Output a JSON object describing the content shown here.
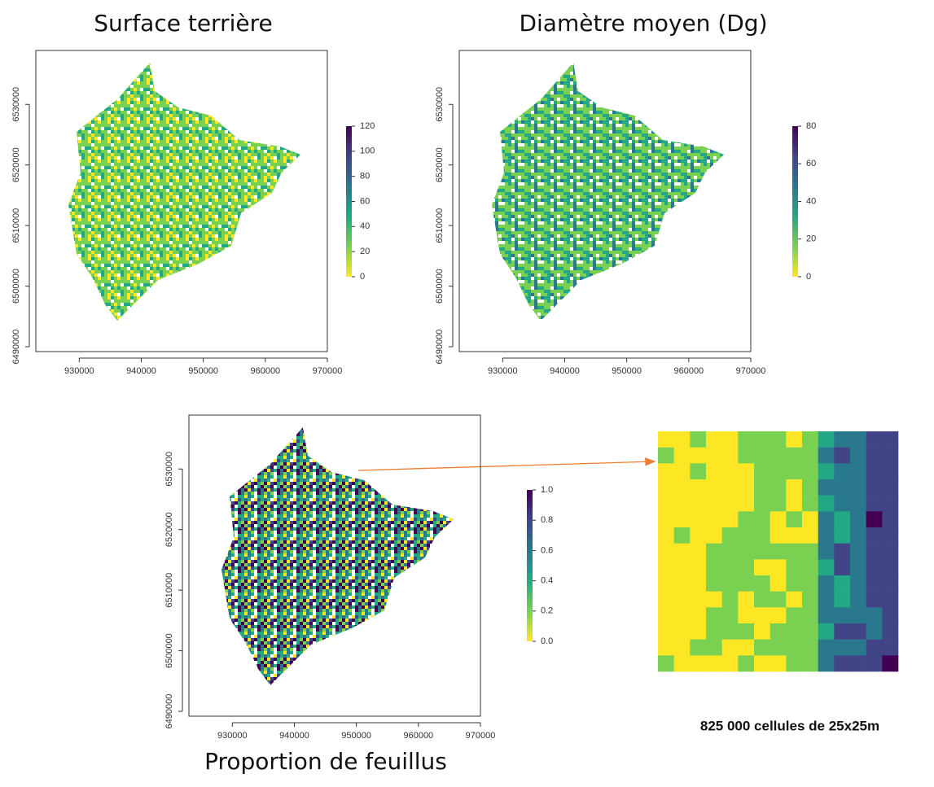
{
  "colormap": [
    "#fde725",
    "#7ad151",
    "#22a884",
    "#2a788e",
    "#414487",
    "#440154"
  ],
  "maps": [
    {
      "title": "Surface terrière",
      "xlim": [
        923000,
        970000
      ],
      "ylim": [
        6489200,
        6538900
      ],
      "xticks": [
        930000,
        940000,
        950000,
        960000,
        970000
      ],
      "yticks": [
        6490000,
        6500000,
        6510000,
        6520000,
        6530000
      ],
      "colorbar": {
        "lim": [
          0,
          120
        ],
        "ticks": [
          0,
          20,
          40,
          60,
          80,
          100,
          120
        ]
      }
    },
    {
      "title": "Diamètre moyen (Dg)",
      "xlim": [
        923000,
        970000
      ],
      "ylim": [
        6489200,
        6538900
      ],
      "xticks": [
        930000,
        940000,
        950000,
        960000,
        970000
      ],
      "yticks": [
        6490000,
        6500000,
        6510000,
        6520000,
        6530000
      ],
      "colorbar": {
        "lim": [
          0,
          80
        ],
        "ticks": [
          0,
          20,
          40,
          60,
          80
        ]
      }
    },
    {
      "title": "Proportion de feuillus",
      "xlim": [
        923000,
        970000
      ],
      "ylim": [
        6489200,
        6538900
      ],
      "xticks": [
        930000,
        940000,
        950000,
        960000,
        970000
      ],
      "yticks": [
        6490000,
        6500000,
        6510000,
        6520000,
        6530000
      ],
      "colorbar": {
        "lim": [
          0,
          1
        ],
        "ticks": [
          {
            "value": 0,
            "label": "0.0"
          },
          0.2,
          0.4,
          0.6,
          0.8,
          {
            "value": 1,
            "label": "1.0"
          }
        ]
      }
    }
  ],
  "inset": {
    "caption": "825 000 cellules de 25x25m"
  }
}
